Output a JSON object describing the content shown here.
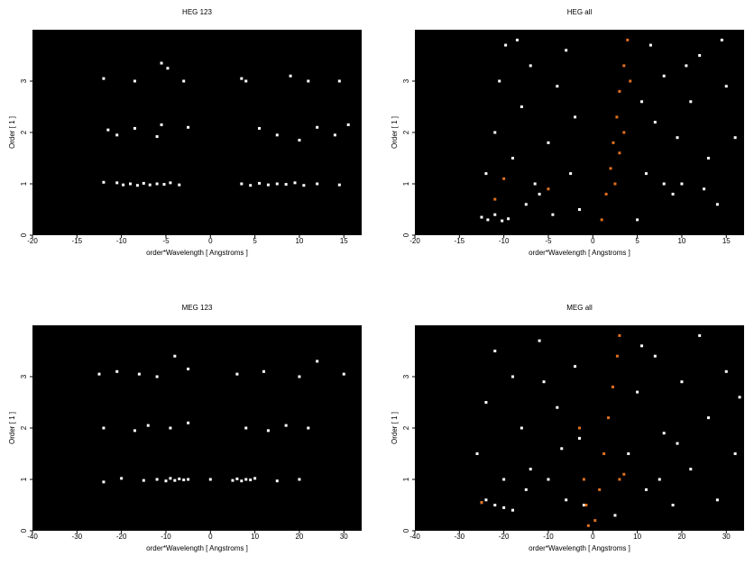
{
  "chart_data": [
    {
      "type": "scatter",
      "title": "HEG 123",
      "xlabel": "order*Wavelength [ Angstroms ]",
      "ylabel": "Order [ 1 ]",
      "background": "#000000",
      "xlim": [
        -20,
        17
      ],
      "ylim": [
        0,
        4
      ],
      "xticks": [
        -20,
        -15,
        -10,
        -5,
        0,
        5,
        10,
        15
      ],
      "yticks": [
        0,
        1,
        2,
        3
      ],
      "series": [
        {
          "color": "#ffffff",
          "x": [
            -10.5,
            -9.8,
            -9,
            -8.2,
            -7.5,
            -6.8,
            -6,
            -5.2,
            -4.5,
            -3.5,
            -12,
            3.5,
            4.5,
            5.5,
            6.5,
            7.5,
            8.5,
            9.5,
            10.5,
            12,
            14.5,
            -11.5,
            -10.5,
            -8.5,
            -6,
            -5.5,
            -2.5,
            5.5,
            7.5,
            10,
            12,
            14,
            15.5,
            -12,
            -8.5,
            -5.5,
            -4.8,
            -3,
            3.5,
            4,
            9,
            11,
            14.5
          ],
          "y": [
            1.02,
            0.98,
            1.0,
            0.97,
            1.01,
            0.98,
            1.0,
            0.99,
            1.02,
            0.98,
            1.03,
            1.0,
            0.97,
            1.01,
            0.98,
            1.0,
            0.99,
            1.02,
            0.97,
            1.0,
            0.98,
            2.05,
            1.95,
            2.08,
            1.92,
            2.15,
            2.1,
            2.08,
            1.95,
            1.85,
            2.1,
            1.95,
            2.15,
            3.05,
            3.0,
            3.35,
            3.25,
            3.0,
            3.05,
            3.0,
            3.1,
            3.0,
            3.0
          ]
        }
      ]
    },
    {
      "type": "scatter",
      "title": "HEG all",
      "xlabel": "order*Wavelength [ Angstroms ]",
      "ylabel": "Order [ 1 ]",
      "background": "#000000",
      "xlim": [
        -20,
        17
      ],
      "ylim": [
        0,
        4
      ],
      "xticks": [
        -20,
        -15,
        -10,
        -5,
        0,
        5,
        10,
        15
      ],
      "yticks": [
        0,
        1,
        2,
        3
      ],
      "series": [
        {
          "color": "#ffffff",
          "x": [
            -12.5,
            -11.8,
            -11,
            -10.2,
            -9.5,
            -12,
            -11,
            -10.5,
            -9.8,
            -9,
            -8,
            -7,
            -6,
            -5,
            -4,
            -3,
            -2.5,
            -1.5,
            -7.5,
            -6.5,
            -4.5,
            -8.5,
            -2,
            5,
            6,
            7,
            8,
            9,
            10,
            11,
            12,
            13,
            14,
            15,
            16,
            6.5,
            9.5,
            12.5,
            14.5,
            8,
            5.5,
            10.5
          ],
          "y": [
            0.35,
            0.3,
            0.4,
            0.28,
            0.32,
            1.2,
            2.0,
            3.0,
            3.7,
            1.5,
            2.5,
            3.3,
            0.8,
            1.8,
            2.9,
            3.6,
            1.2,
            0.5,
            0.6,
            1.0,
            0.4,
            3.8,
            2.3,
            0.3,
            1.2,
            2.2,
            3.1,
            0.8,
            1.0,
            2.6,
            3.5,
            1.5,
            0.6,
            2.9,
            1.9,
            3.7,
            1.9,
            0.9,
            3.8,
            1.0,
            2.6,
            3.3
          ]
        },
        {
          "color": "#e07020",
          "x": [
            1,
            1.5,
            2,
            2.3,
            2.7,
            3,
            3.5,
            3.9,
            2.5,
            3,
            3.5,
            -11,
            -10,
            -5,
            4.2
          ],
          "y": [
            0.3,
            0.8,
            1.3,
            1.8,
            2.3,
            2.8,
            3.3,
            3.8,
            1.0,
            1.6,
            2.0,
            0.7,
            1.1,
            0.9,
            3.0
          ]
        }
      ]
    },
    {
      "type": "scatter",
      "title": "MEG 123",
      "xlabel": "order*Wavelength [ Angstroms ]",
      "ylabel": "Order [ 1 ]",
      "background": "#000000",
      "xlim": [
        -40,
        34
      ],
      "ylim": [
        0,
        4
      ],
      "xticks": [
        -40,
        -30,
        -20,
        -10,
        0,
        10,
        20,
        30
      ],
      "yticks": [
        0,
        1,
        2,
        3
      ],
      "series": [
        {
          "color": "#ffffff",
          "x": [
            -24,
            -20,
            -15,
            -12,
            -10,
            -9,
            -8,
            -7,
            -6,
            -5,
            0,
            5,
            6,
            7,
            8,
            9,
            10,
            15,
            20,
            -24,
            -17,
            -14,
            -9,
            -5,
            8,
            13,
            17,
            22,
            -25,
            -21,
            -16,
            -12,
            -8,
            -5,
            6,
            12,
            20,
            24,
            30
          ],
          "y": [
            0.95,
            1.02,
            0.98,
            1.0,
            0.97,
            1.02,
            0.98,
            1.01,
            0.99,
            1.0,
            1.0,
            0.98,
            1.01,
            0.97,
            1.0,
            0.99,
            1.02,
            0.97,
            1.0,
            2.0,
            1.95,
            2.05,
            2.0,
            2.1,
            2.0,
            1.95,
            2.05,
            2.0,
            3.05,
            3.1,
            3.05,
            3.0,
            3.4,
            3.15,
            3.05,
            3.1,
            3.0,
            3.3,
            3.05
          ]
        }
      ]
    },
    {
      "type": "scatter",
      "title": "MEG all",
      "xlabel": "order*Wavelength [ Angstroms ]",
      "ylabel": "Order [ 1 ]",
      "background": "#000000",
      "xlim": [
        -40,
        34
      ],
      "ylim": [
        0,
        4
      ],
      "xticks": [
        -40,
        -30,
        -20,
        -10,
        0,
        10,
        20,
        30
      ],
      "yticks": [
        0,
        1,
        2,
        3
      ],
      "series": [
        {
          "color": "#ffffff",
          "x": [
            -25,
            -24,
            -22,
            -20,
            -18,
            -26,
            -24,
            -22,
            -20,
            -18,
            -16,
            -14,
            -12,
            -10,
            -8,
            -6,
            -4,
            -3,
            -2,
            -15,
            -11,
            -7,
            5,
            8,
            10,
            12,
            14,
            16,
            18,
            20,
            22,
            24,
            26,
            28,
            30,
            32,
            33,
            15,
            11,
            19
          ],
          "y": [
            0.55,
            0.6,
            0.5,
            0.45,
            0.4,
            1.5,
            2.5,
            3.5,
            1.0,
            3.0,
            2.0,
            1.2,
            3.7,
            1.0,
            2.4,
            0.6,
            3.2,
            1.8,
            0.5,
            0.8,
            2.9,
            1.6,
            0.3,
            1.5,
            2.7,
            0.8,
            3.4,
            1.9,
            0.5,
            2.9,
            1.2,
            3.8,
            2.2,
            0.6,
            3.1,
            1.5,
            2.6,
            1.0,
            3.6,
            1.7
          ]
        },
        {
          "color": "#e07020",
          "x": [
            -1,
            0.5,
            1.5,
            2.5,
            3.5,
            4.5,
            5.5,
            6,
            -1.5,
            -2,
            -3,
            6,
            7,
            -25
          ],
          "y": [
            0.1,
            0.2,
            0.8,
            1.5,
            2.2,
            2.8,
            3.4,
            3.8,
            0.5,
            1.0,
            2.0,
            1.0,
            1.1,
            0.55
          ]
        }
      ]
    }
  ]
}
